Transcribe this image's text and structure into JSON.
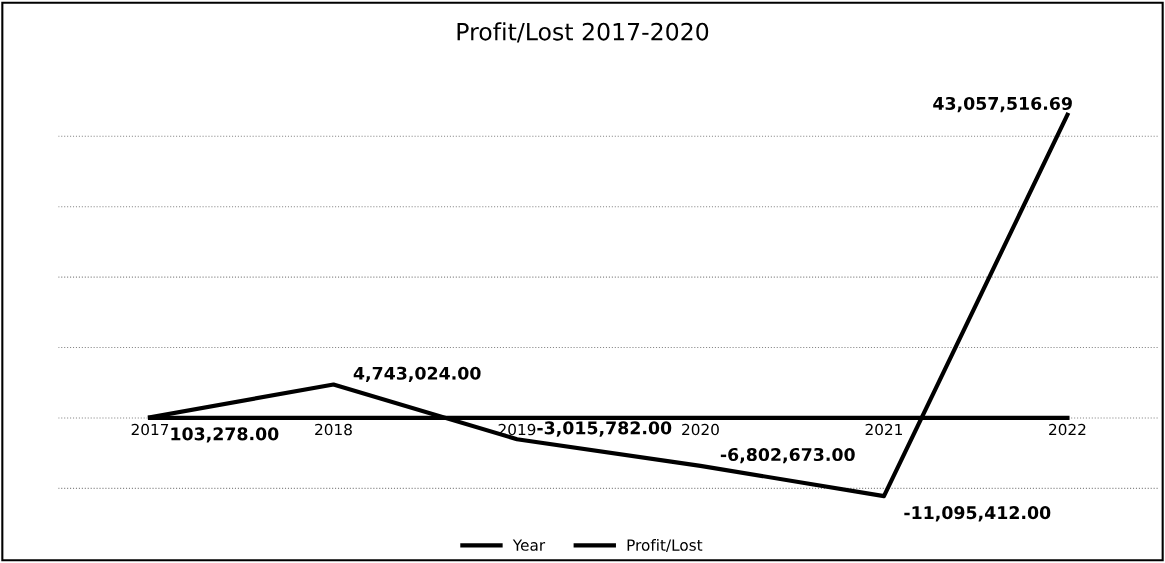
{
  "chart_data": {
    "type": "line",
    "title": "Profit/Lost 2017-2020",
    "categories": [
      "2017",
      "2018",
      "2019",
      "2020",
      "2021",
      "2022"
    ],
    "series": [
      {
        "name": "Year",
        "color": "#000000",
        "values": [
          2017,
          2018,
          2019,
          2020,
          2021,
          2022
        ]
      },
      {
        "name": "Profit/Lost",
        "color": "#000000",
        "values": [
          103278.0,
          4743024.0,
          -3015782.0,
          -6802673.0,
          -11095412.0,
          43057516.69
        ],
        "value_labels": [
          "103,278.00",
          "4,743,024.00",
          "-3,015,782.00",
          "-6,802,673.00",
          "-11,095,412.00",
          "43,057,516.69"
        ]
      }
    ],
    "tick_labels": "x",
    "grid": "y",
    "legend": "bottom",
    "marker": "none",
    "line_style": "solid"
  }
}
